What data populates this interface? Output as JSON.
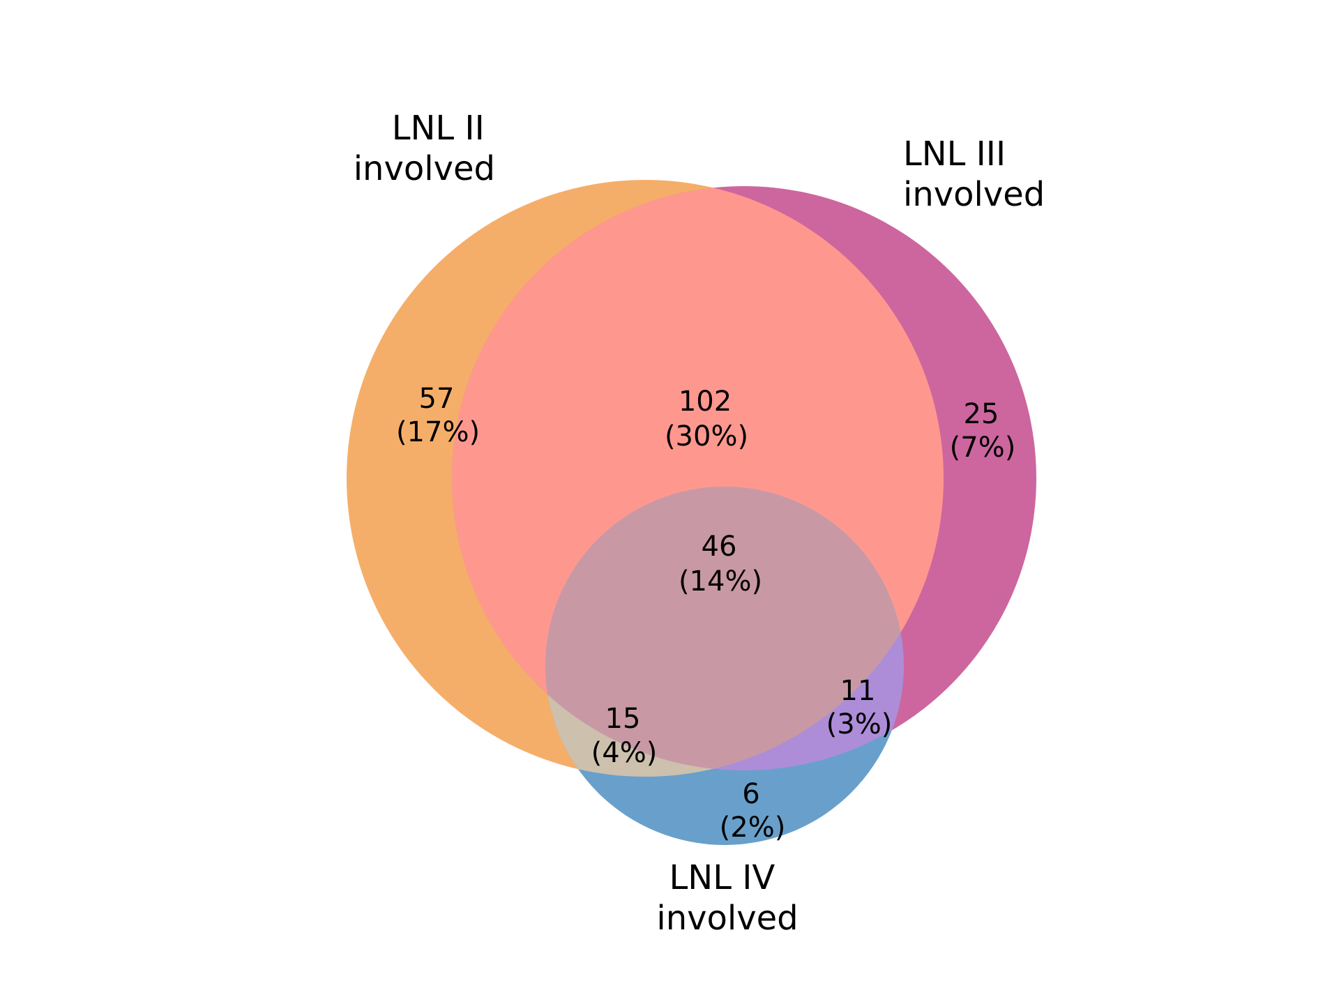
{
  "diagram": {
    "type": "venn3",
    "sets": [
      {
        "id": "A",
        "label_line1": "LNL II",
        "label_line2": "involved",
        "color": "#f5ae69"
      },
      {
        "id": "B",
        "label_line1": "LNL III",
        "label_line2": "involved",
        "color": "#cd669e"
      },
      {
        "id": "C",
        "label_line1": "LNL IV",
        "label_line2": "involved",
        "color": "#68a0cb"
      }
    ],
    "regions": [
      {
        "sets": "A",
        "count": "57",
        "percent": "(17%)",
        "color": "#f5ae69"
      },
      {
        "sets": "AB",
        "count": "102",
        "percent": "(30%)",
        "color": "#fe988f"
      },
      {
        "sets": "B",
        "count": "25",
        "percent": "(7%)",
        "color": "#cd669e"
      },
      {
        "sets": "ABC",
        "count": "46",
        "percent": "(14%)",
        "color": "#c899a4"
      },
      {
        "sets": "AC",
        "count": "15",
        "percent": "(4%)",
        "color": "#cdc0ad"
      },
      {
        "sets": "BC",
        "count": "11",
        "percent": "(3%)",
        "color": "#ad8dd7"
      },
      {
        "sets": "C",
        "count": "6",
        "percent": "(2%)",
        "color": "#68a0cb"
      }
    ]
  }
}
